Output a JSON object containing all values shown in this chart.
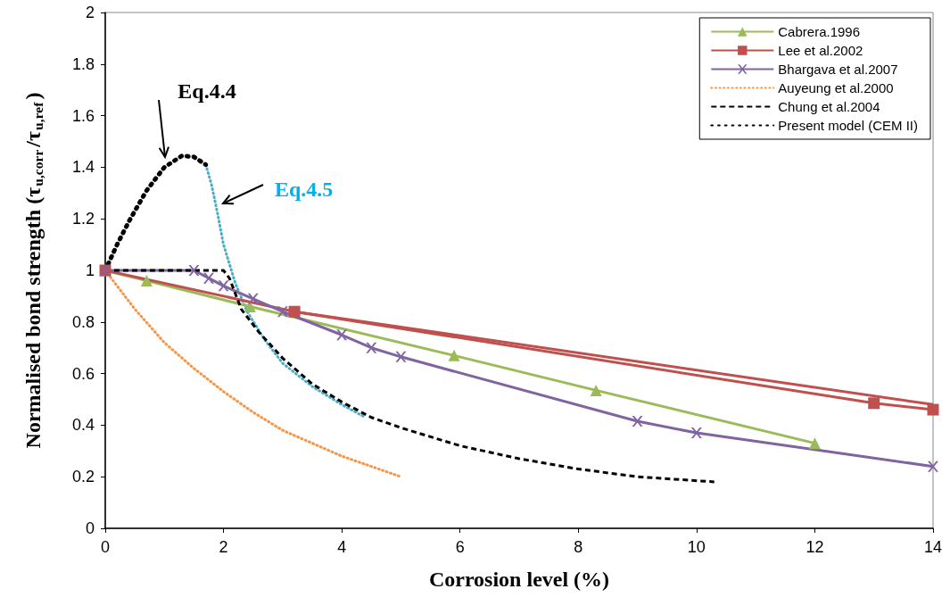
{
  "chart_data": {
    "type": "line",
    "xlabel": "Corrosion level (%)",
    "ylabel": "Normalised bond strength (τ$_{u,corr}$/τ$_{u,ref}$)",
    "xlim": [
      0,
      14
    ],
    "xticks": [
      0,
      2,
      4,
      6,
      8,
      10,
      12,
      14
    ],
    "ylim": [
      0,
      2
    ],
    "yticks": [
      0,
      0.2,
      0.4,
      0.6,
      0.8,
      1,
      1.2,
      1.4,
      1.6,
      1.8,
      2
    ],
    "grid": false,
    "legend": "top right",
    "annotations": [
      "Eq.4.4",
      "Eq.4.5"
    ],
    "series": [
      {
        "name": "Cabrera.1996",
        "color": "#9bbb59",
        "marker": "triangle",
        "line_style": "solid",
        "x": [
          0,
          0.7,
          2.45,
          5.9,
          8.3,
          12
        ],
        "values": [
          1,
          0.96,
          0.86,
          0.67,
          0.535,
          0.33
        ]
      },
      {
        "name": "Lee et al.2002",
        "color": "#c0504d",
        "marker": "square",
        "line_style": "solid",
        "x": [
          0,
          3.2,
          13,
          14
        ],
        "values": [
          1,
          0.84,
          0.485,
          0.46
        ]
      },
      {
        "name": "Bhargava et al.2007",
        "color": "#8064a2",
        "marker": "cross",
        "line_style": "solid",
        "x": [
          0,
          1.5,
          1.75,
          2,
          2.5,
          3,
          4,
          4.5,
          5,
          9,
          10,
          14
        ],
        "values": [
          1,
          1,
          0.97,
          0.94,
          0.89,
          0.84,
          0.75,
          0.7,
          0.665,
          0.415,
          0.37,
          0.24
        ]
      },
      {
        "name": "Auyeung et al.2000",
        "color": "#f79646",
        "marker": "none",
        "line_style": "dotted",
        "x": [
          0,
          0.5,
          1,
          1.5,
          2,
          2.5,
          3,
          3.5,
          4,
          4.5,
          5
        ],
        "values": [
          1,
          0.85,
          0.72,
          0.62,
          0.53,
          0.45,
          0.38,
          0.33,
          0.28,
          0.24,
          0.2
        ]
      },
      {
        "name": "Chung et al.2004",
        "color": "#000000",
        "marker": "none",
        "line_style": "dashed",
        "x": [
          0,
          1,
          2,
          2.1,
          2.3,
          2.6,
          3,
          3.5,
          4,
          4.5,
          5,
          6,
          7,
          8,
          9,
          10.3
        ],
        "values": [
          1,
          1,
          1,
          0.97,
          0.85,
          0.76,
          0.66,
          0.56,
          0.49,
          0.43,
          0.39,
          0.32,
          0.27,
          0.23,
          0.2,
          0.18
        ]
      },
      {
        "name": "Present model (CEM II)",
        "color": "#000000",
        "marker": "none",
        "line_style": "dotted",
        "x": [
          0,
          0.2,
          0.4,
          0.7,
          1,
          1.3,
          1.5,
          1.7
        ],
        "values": [
          1,
          1.1,
          1.19,
          1.31,
          1.4,
          1.445,
          1.44,
          1.41
        ]
      },
      {
        "color": "#4bacc6",
        "marker": "none",
        "line_style": "dotted",
        "x": [
          1.7,
          1.8,
          1.9,
          2,
          2.2,
          2.4,
          2.7,
          3,
          3.5,
          4,
          4.4
        ],
        "values": [
          1.41,
          1.33,
          1.22,
          1.1,
          0.95,
          0.84,
          0.73,
          0.64,
          0.55,
          0.48,
          0.43
        ]
      },
      {
        "color": "#c0504d",
        "marker": "none",
        "line_style": "solid",
        "x": [
          3.2,
          14
        ],
        "values": [
          0.84,
          0.48
        ]
      }
    ]
  }
}
